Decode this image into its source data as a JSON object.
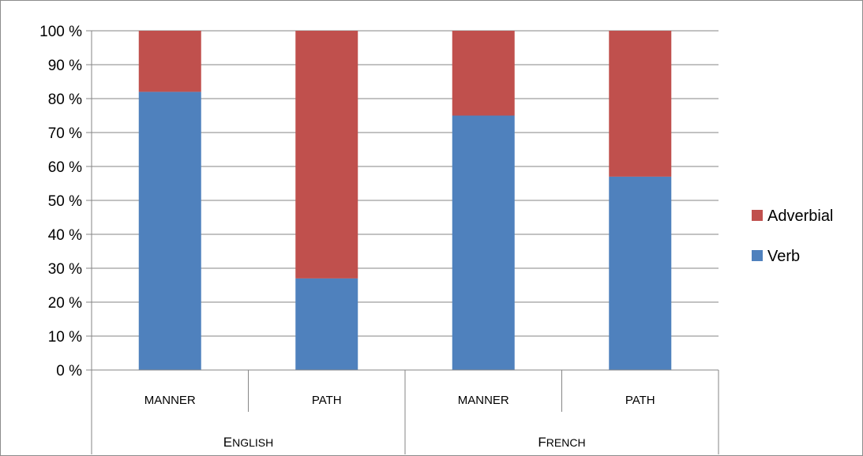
{
  "chart_data": {
    "type": "bar",
    "stacked": true,
    "percent": true,
    "categories": [
      "MANNER",
      "PATH",
      "MANNER",
      "PATH"
    ],
    "groups": [
      {
        "label": "English",
        "categories": [
          "MANNER",
          "PATH"
        ]
      },
      {
        "label": "French",
        "categories": [
          "MANNER",
          "PATH"
        ]
      }
    ],
    "series": [
      {
        "name": "Verb",
        "color": "#4f81bd",
        "values": [
          82,
          27,
          75,
          57
        ]
      },
      {
        "name": "Adverbial",
        "color": "#c0504d",
        "values": [
          18,
          73,
          25,
          43
        ]
      }
    ],
    "y_ticks": [
      "0 %",
      "10 %",
      "20 %",
      "30 %",
      "40 %",
      "50 %",
      "60 %",
      "70 %",
      "80 %",
      "90 %",
      "100 %"
    ],
    "ylim": [
      0,
      100
    ],
    "grid": true,
    "legend_position": "right",
    "legend_order": [
      "Adverbial",
      "Verb"
    ]
  }
}
